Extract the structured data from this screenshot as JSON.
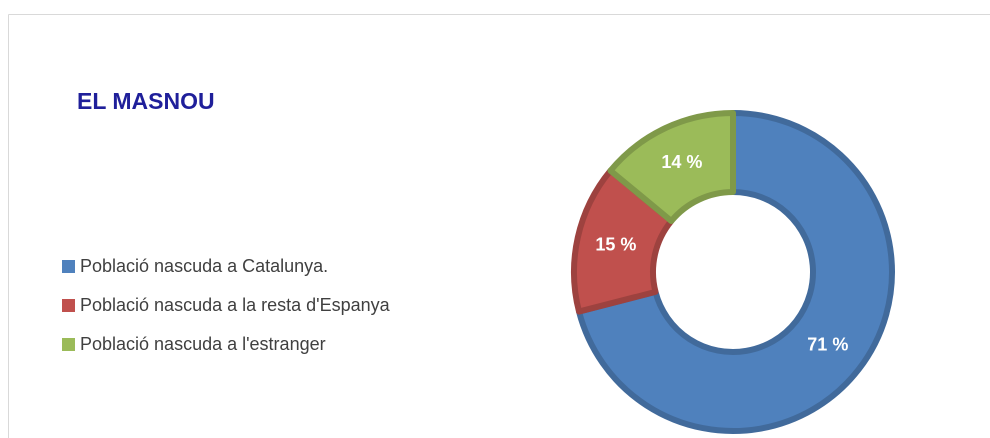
{
  "chart_data": {
    "type": "donut",
    "title": "EL MASNOU",
    "categories": [
      "Població nascuda a Catalunya.",
      "Població nascuda a la resta d'Espanya",
      "Població nascuda a l'estranger"
    ],
    "values": [
      71,
      15,
      14
    ],
    "value_labels": [
      "71 %",
      "15 %",
      "14 %"
    ],
    "colors": [
      "#4f81bd",
      "#c0504d",
      "#9bbb59"
    ],
    "legend": "left"
  }
}
